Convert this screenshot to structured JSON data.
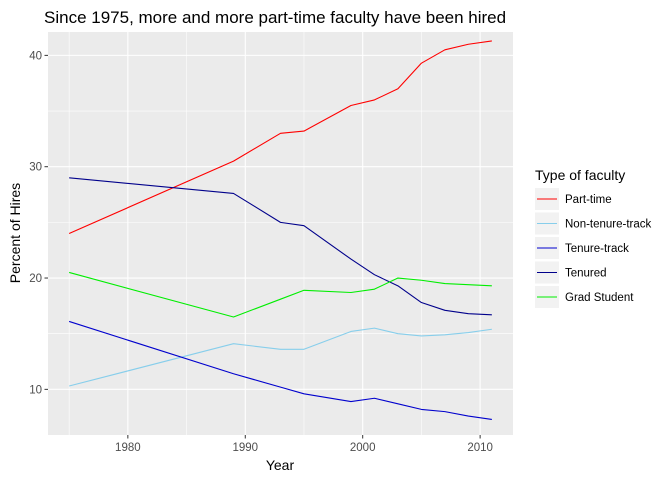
{
  "chart_data": {
    "type": "line",
    "title": "Since 1975, more and more part-time faculty have been hired",
    "xlabel": "Year",
    "ylabel": "Percent of Hires",
    "xlim": [
      1973.2,
      1972.8
    ],
    "ylim": [
      5.9,
      42.1
    ],
    "x_ticks": [
      1980,
      1990,
      2000,
      2010
    ],
    "y_ticks": [
      10,
      20,
      30,
      40
    ],
    "grid": true,
    "legend": {
      "title": "Type of faculty",
      "position": "right"
    },
    "x": [
      1975,
      1989,
      1993,
      1995,
      1999,
      2001,
      2003,
      2005,
      2007,
      2009,
      2011
    ],
    "series": [
      {
        "name": "Part-time",
        "color": "#ff0000",
        "values": [
          24.0,
          30.5,
          33.0,
          33.2,
          35.5,
          36.0,
          37.0,
          39.3,
          40.5,
          41.0,
          41.3
        ]
      },
      {
        "name": "Non-tenure-track",
        "color": "#87ceeb",
        "values": [
          10.3,
          14.1,
          13.6,
          13.6,
          15.2,
          15.5,
          15.0,
          14.8,
          14.9,
          15.1,
          15.4
        ]
      },
      {
        "name": "Tenure-track",
        "color": "#0000cd",
        "values": [
          16.1,
          11.4,
          10.2,
          9.6,
          8.9,
          9.2,
          8.7,
          8.2,
          8.0,
          7.6,
          7.3
        ]
      },
      {
        "name": "Tenured",
        "color": "#00008b",
        "values": [
          29.0,
          27.6,
          25.0,
          24.7,
          21.7,
          20.3,
          19.3,
          17.8,
          17.1,
          16.8,
          16.7
        ]
      },
      {
        "name": "Grad Student",
        "color": "#00ee00",
        "values": [
          20.5,
          16.5,
          18.1,
          18.9,
          18.7,
          19.0,
          20.0,
          19.8,
          19.5,
          19.4,
          19.3
        ]
      }
    ]
  },
  "colors": {
    "panel_background": "#ebebeb",
    "grid_major": "#ffffff",
    "legend_key_background": "#f2f2f2"
  }
}
